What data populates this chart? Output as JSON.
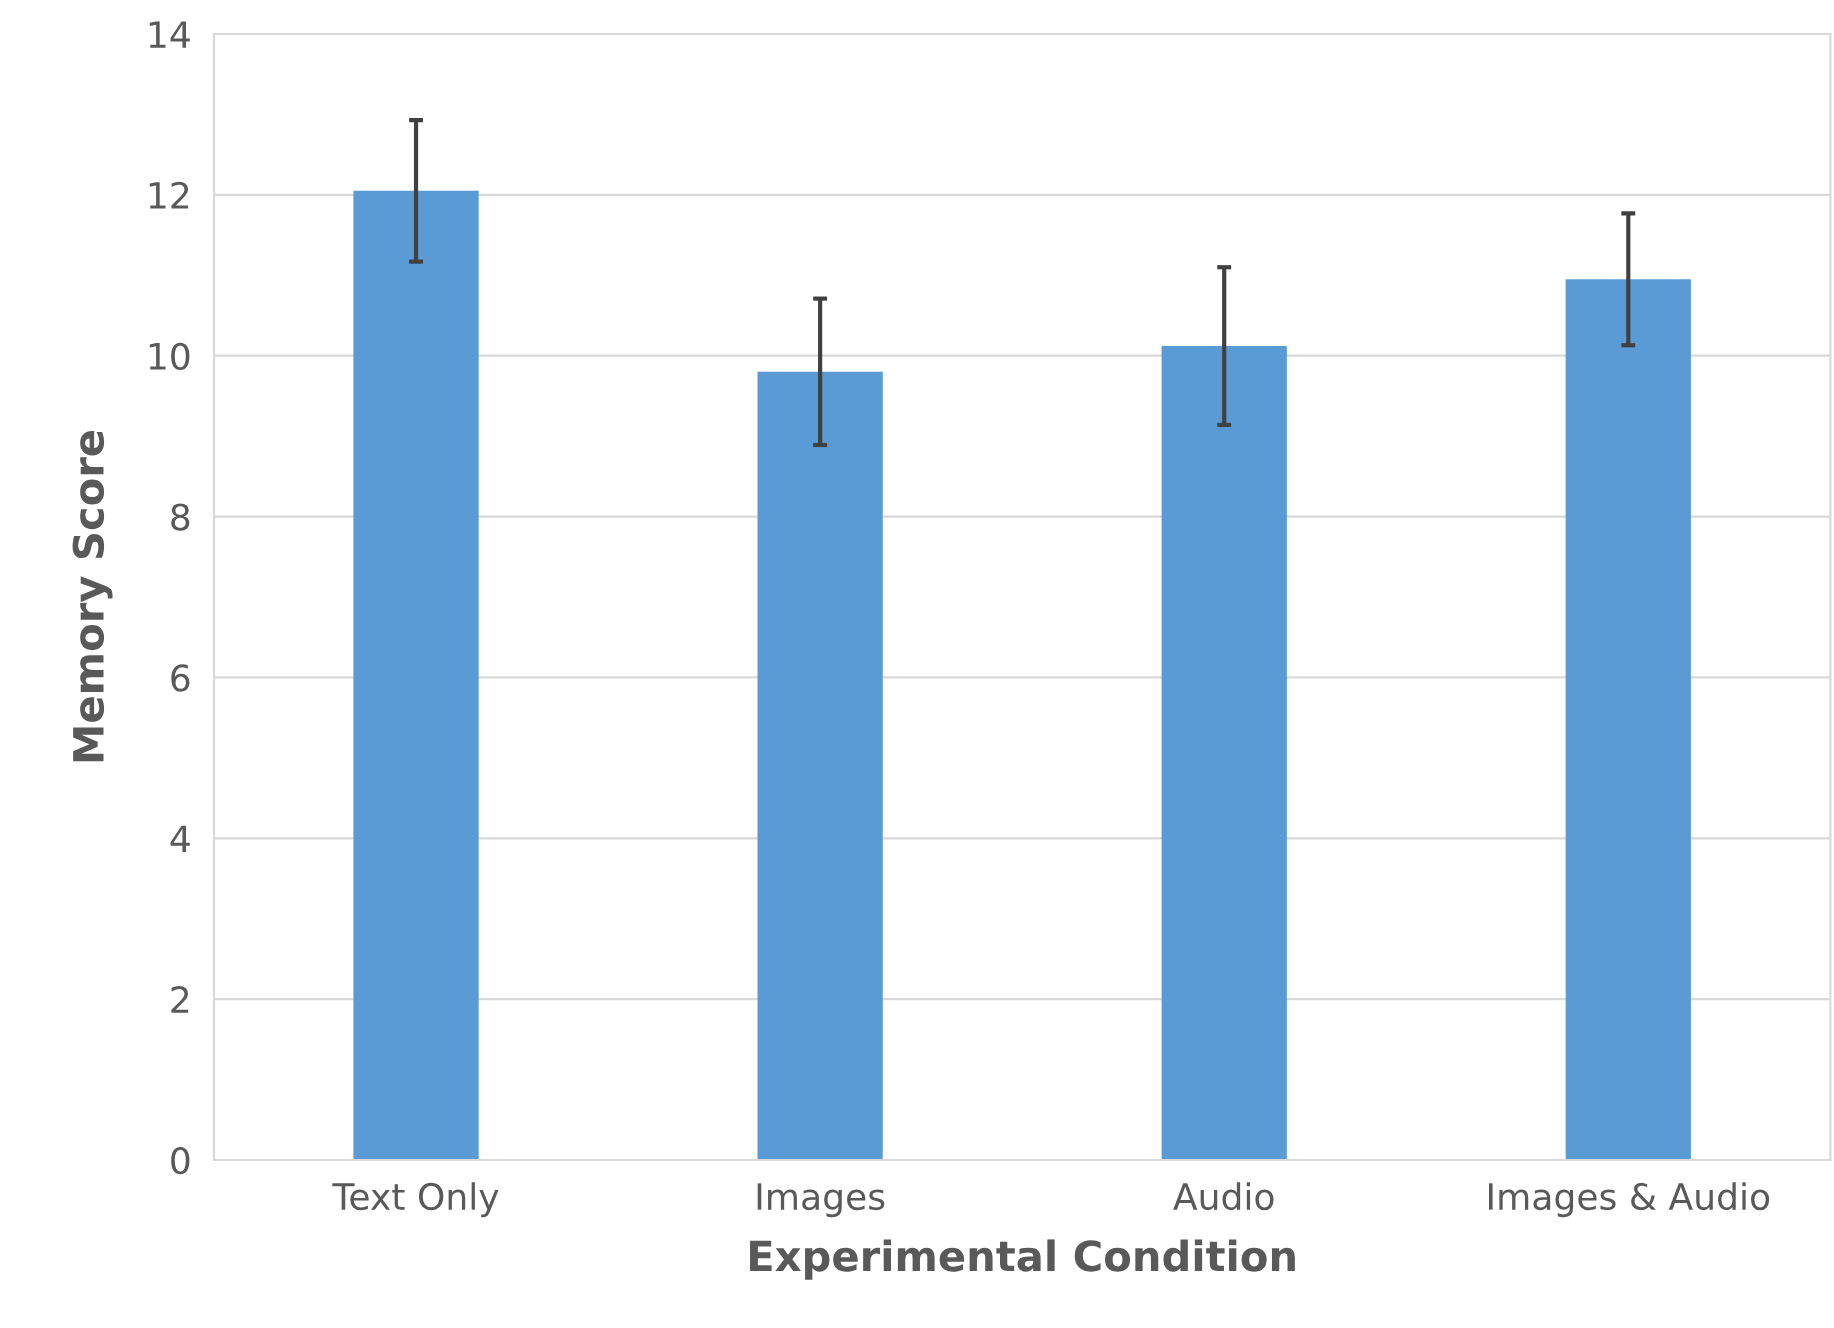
{
  "chart_data": {
    "type": "bar",
    "xlabel": "Experimental Condition",
    "ylabel": "Memory Score",
    "categories": [
      "Text Only",
      "Images",
      "Audio",
      "Images & Audio"
    ],
    "values": [
      12.05,
      9.8,
      10.12,
      10.95
    ],
    "errors": [
      0.88,
      0.91,
      0.98,
      0.82
    ],
    "color": "#5b9bd5",
    "ylim": [
      0,
      14
    ],
    "yticks": [
      0,
      2,
      4,
      6,
      8,
      10,
      12,
      14
    ],
    "grid": "y"
  }
}
